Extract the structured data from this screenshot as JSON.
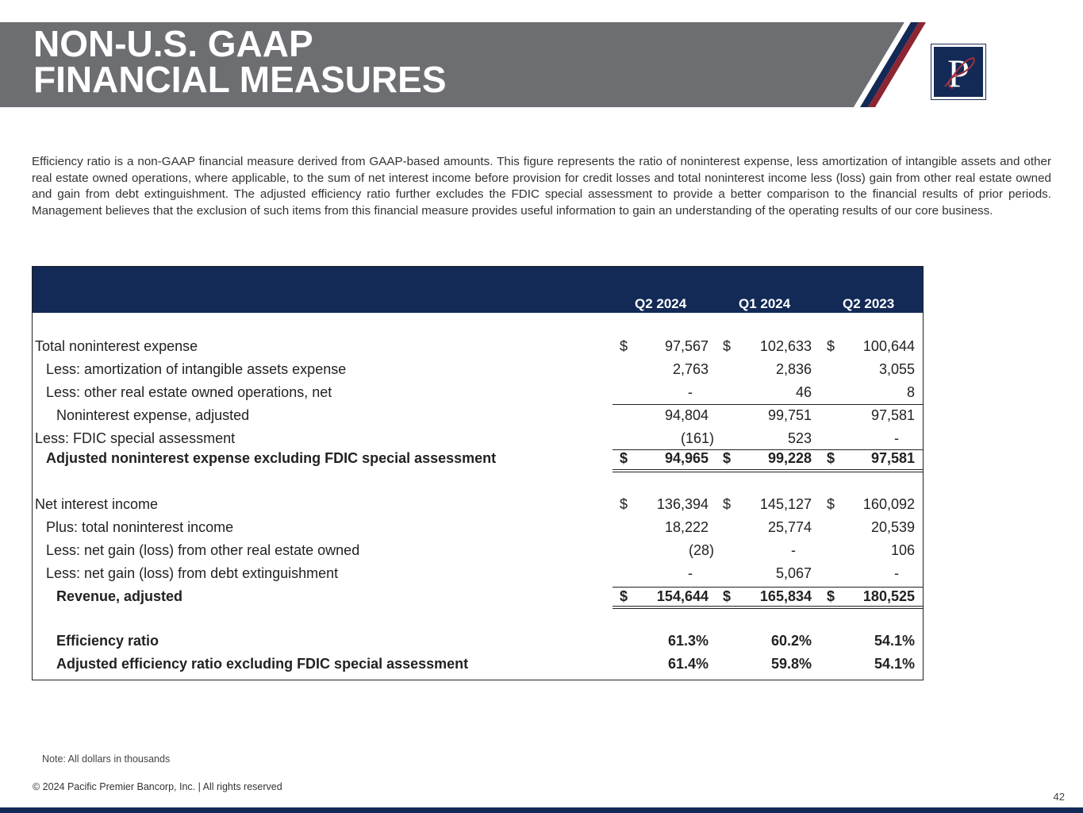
{
  "header": {
    "title_line1": "NON-U.S. GAAP",
    "title_line2": "FINANCIAL MEASURES",
    "logo": "Pacific Premier P logo"
  },
  "intro": "Efficiency ratio is a non-GAAP financial measure derived from GAAP-based amounts. This figure represents the ratio of noninterest expense, less amortization of intangible assets and other real estate owned operations, where applicable, to the sum of net interest income before provision for credit losses and total noninterest income less (loss) gain from other real estate owned and gain from debt extinguishment. The adjusted efficiency ratio further excludes the FDIC special assessment to provide a better comparison to the financial results of prior periods. Management believes that the exclusion of such items from this financial measure provides useful information to gain an understanding of the operating results of our core business.",
  "table": {
    "columns": [
      "Q2 2024",
      "Q1 2024",
      "Q2 2023"
    ],
    "rows": [
      {
        "label": "Total noninterest expense",
        "values": [
          "97,567",
          "102,633",
          "100,644"
        ],
        "dollar": true
      },
      {
        "label": "Less: amortization of intangible assets expense",
        "values": [
          "2,763",
          "2,836",
          "3,055"
        ]
      },
      {
        "label": "Less: other real estate owned operations, net",
        "values": [
          "-",
          "46",
          "8"
        ]
      },
      {
        "label": "Noninterest expense, adjusted",
        "values": [
          "94,804",
          "99,751",
          "97,581"
        ]
      },
      {
        "label": "Less: FDIC special assessment",
        "values": [
          "(161)",
          "523",
          "-"
        ]
      },
      {
        "label": "Adjusted noninterest expense excluding FDIC special assessment",
        "values": [
          "94,965",
          "99,228",
          "97,581"
        ],
        "dollar": true
      },
      {
        "label": "Net interest income",
        "values": [
          "136,394",
          "145,127",
          "160,092"
        ],
        "dollar": true
      },
      {
        "label": "Plus: total noninterest income",
        "values": [
          "18,222",
          "25,774",
          "20,539"
        ]
      },
      {
        "label": "Less: net gain (loss) from other real estate owned",
        "values": [
          "(28)",
          "-",
          "106"
        ]
      },
      {
        "label": "Less: net gain (loss) from debt extinguishment",
        "values": [
          "-",
          "5,067",
          "-"
        ]
      },
      {
        "label": "Revenue, adjusted",
        "values": [
          "154,644",
          "165,834",
          "180,525"
        ],
        "dollar": true
      },
      {
        "label": "Efficiency ratio",
        "values": [
          "61.3%",
          "60.2%",
          "54.1%"
        ]
      },
      {
        "label": "Adjusted efficiency ratio excluding FDIC special assessment",
        "values": [
          "61.4%",
          "59.8%",
          "54.1%"
        ]
      }
    ],
    "dollar_sign": "$"
  },
  "footer": {
    "note": "Note: All dollars in thousands",
    "copyright": "© 2024 Pacific Premier Bancorp, Inc. | All rights reserved",
    "page": "42"
  }
}
